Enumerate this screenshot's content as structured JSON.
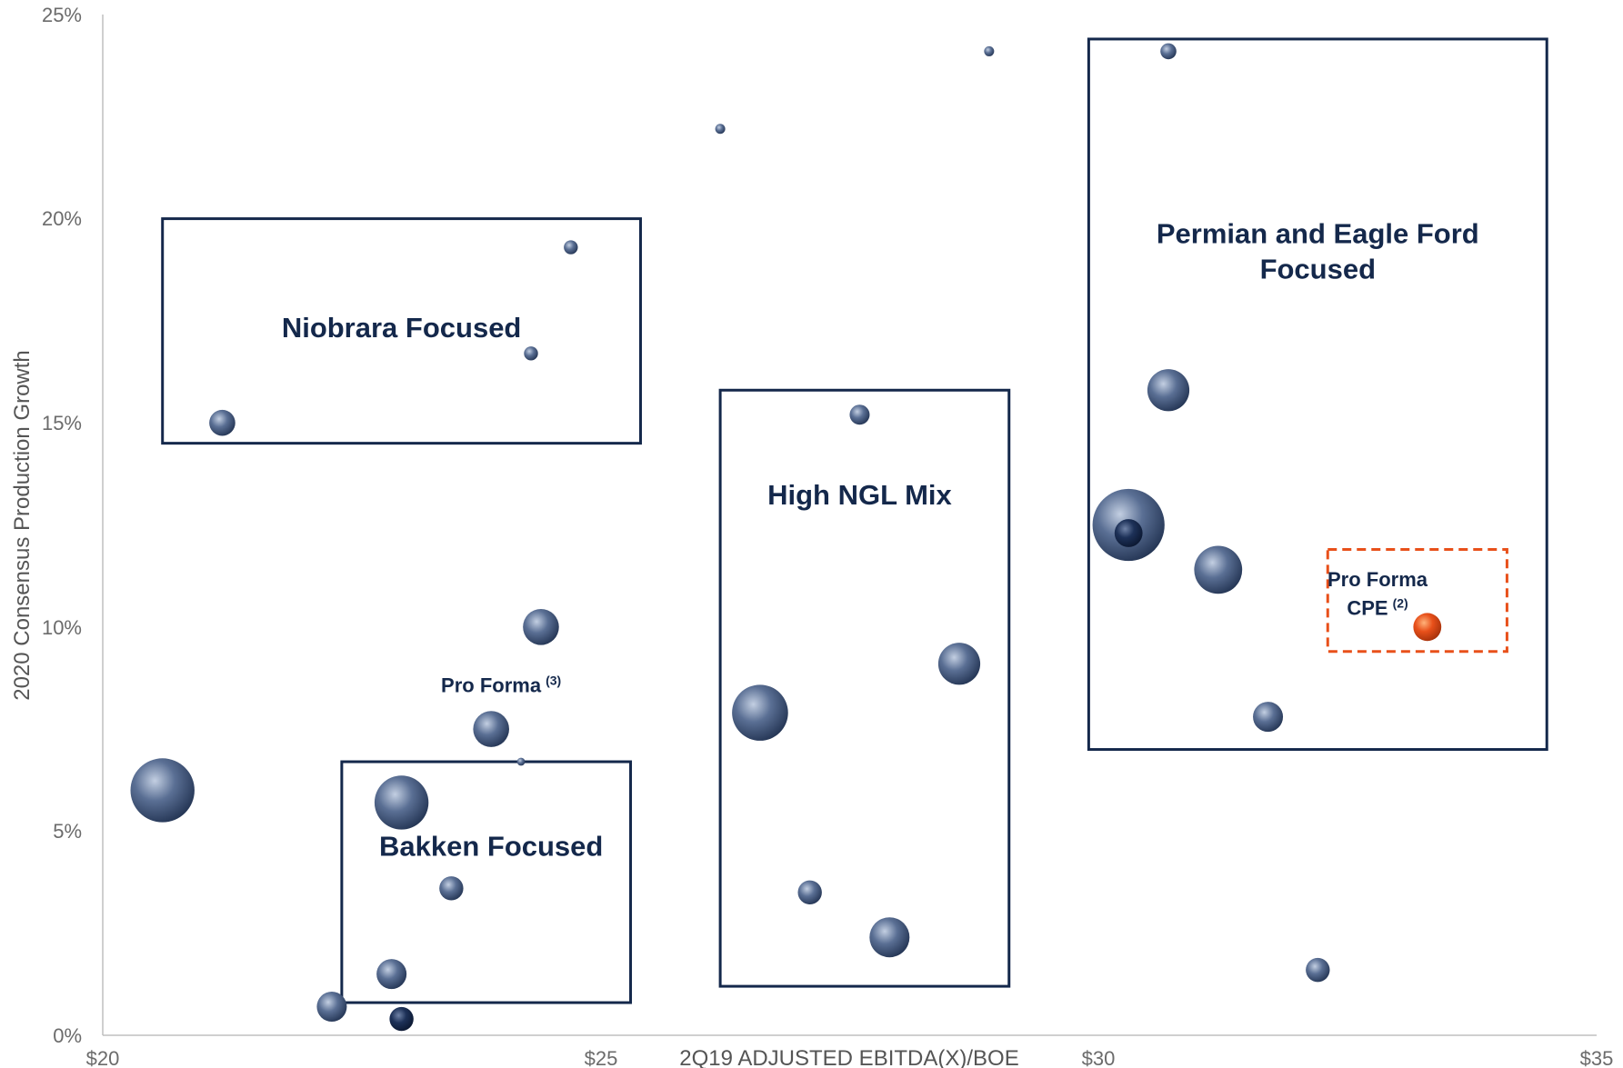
{
  "chart_data": {
    "type": "scatter",
    "xlabel": "2Q19 ADJUSTED EBITDA(X)/BOE",
    "ylabel": "2020 Consensus Production Growth",
    "xlim": [
      20,
      35
    ],
    "ylim": [
      0,
      25
    ],
    "x_ticks": [
      "$20",
      "$25",
      "$30",
      "$35"
    ],
    "y_ticks": [
      "0%",
      "5%",
      "10%",
      "15%",
      "20%",
      "25%"
    ],
    "grid": false,
    "points": [
      {
        "x": 20.6,
        "y": 6.0,
        "size": 3.2
      },
      {
        "x": 21.2,
        "y": 15.0,
        "size": 1.3
      },
      {
        "x": 22.3,
        "y": 0.7,
        "size": 1.5
      },
      {
        "x": 22.9,
        "y": 1.5,
        "size": 1.5
      },
      {
        "x": 23.0,
        "y": 0.4,
        "size": 1.2,
        "color": "#16284d"
      },
      {
        "x": 23.0,
        "y": 5.7,
        "size": 2.7
      },
      {
        "x": 23.5,
        "y": 3.6,
        "size": 1.2
      },
      {
        "x": 23.9,
        "y": 7.5,
        "size": 1.8
      },
      {
        "x": 24.2,
        "y": 6.7,
        "size": 0.4
      },
      {
        "x": 24.3,
        "y": 16.7,
        "size": 0.7
      },
      {
        "x": 24.4,
        "y": 10.0,
        "size": 1.8
      },
      {
        "x": 24.7,
        "y": 19.3,
        "size": 0.7
      },
      {
        "x": 26.2,
        "y": 22.2,
        "size": 0.5
      },
      {
        "x": 26.6,
        "y": 7.9,
        "size": 2.8
      },
      {
        "x": 27.1,
        "y": 3.5,
        "size": 1.2
      },
      {
        "x": 27.6,
        "y": 15.2,
        "size": 1.0
      },
      {
        "x": 27.9,
        "y": 2.4,
        "size": 2.0
      },
      {
        "x": 28.6,
        "y": 9.1,
        "size": 2.1
      },
      {
        "x": 28.9,
        "y": 24.1,
        "size": 0.5
      },
      {
        "x": 30.3,
        "y": 12.5,
        "size": 3.6
      },
      {
        "x": 30.3,
        "y": 12.3,
        "size": 1.4,
        "color": "#16284d"
      },
      {
        "x": 30.7,
        "y": 24.1,
        "size": 0.8
      },
      {
        "x": 30.7,
        "y": 15.8,
        "size": 2.1
      },
      {
        "x": 31.2,
        "y": 11.4,
        "size": 2.4
      },
      {
        "x": 31.7,
        "y": 7.8,
        "size": 1.5
      },
      {
        "x": 32.2,
        "y": 1.6,
        "size": 1.2
      },
      {
        "x": 33.3,
        "y": 10.0,
        "size": 1.4,
        "color": "#e8501a"
      }
    ],
    "regions": [
      {
        "label_lines": [
          "Niobrara Focused"
        ],
        "x0": 20.6,
        "x1": 25.4,
        "y0": 14.5,
        "y1": 20.0,
        "label_x": 23.0,
        "label_y": 17.1
      },
      {
        "label_lines": [
          "Bakken Focused"
        ],
        "x0": 22.4,
        "x1": 25.3,
        "y0": 0.8,
        "y1": 6.7,
        "label_x": 23.9,
        "label_y": 4.4
      },
      {
        "label_lines": [
          "High NGL Mix"
        ],
        "x0": 26.2,
        "x1": 29.1,
        "y0": 1.2,
        "y1": 15.8,
        "label_x": 27.6,
        "label_y": 13.0
      },
      {
        "label_lines": [
          "Permian and Eagle Ford",
          "Focused"
        ],
        "x0": 29.9,
        "x1": 34.5,
        "y0": 7.0,
        "y1": 24.4,
        "label_x": 32.2,
        "label_y": 19.4
      }
    ],
    "annotations": [
      {
        "text": "Pro Forma",
        "sup": "(3)",
        "x": 24.0,
        "y": 8.4
      },
      {
        "text": "Pro Forma",
        "sup": "",
        "x": 32.8,
        "y": 11.0
      },
      {
        "text": "CPE",
        "sup": "(2)",
        "x": 32.8,
        "y": 10.3
      }
    ],
    "highlight_box": {
      "x0": 32.3,
      "x1": 34.1,
      "y0": 9.4,
      "y1": 11.9,
      "color": "#e8501a"
    },
    "bubble_color": "#3d5275",
    "region_color": "#14284b"
  }
}
